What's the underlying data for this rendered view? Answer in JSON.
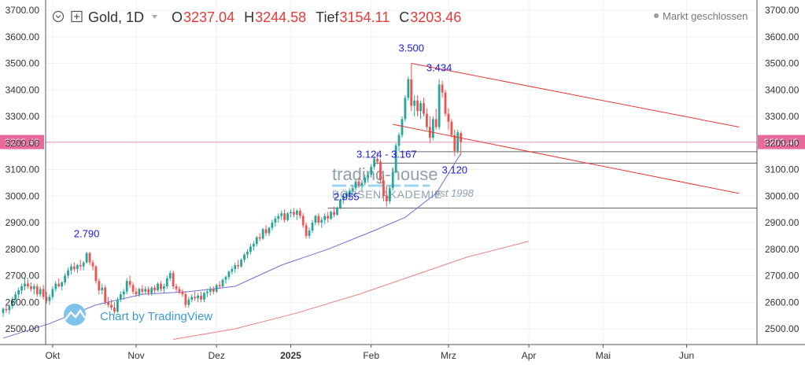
{
  "header": {
    "symbol": "Gold, 1D",
    "ohlc": [
      {
        "label": "O",
        "value": "3237.04"
      },
      {
        "label": "H",
        "value": "3244.58"
      },
      {
        "label": "Tief",
        "value": "3154.11"
      },
      {
        "label": "C",
        "value": "3203.46"
      }
    ],
    "status": "Markt geschlossen",
    "icons": [
      "chevron-down-icon",
      "expand-icon",
      "dropdown-caret-icon"
    ]
  },
  "watermark": {
    "line1": "trading-house",
    "line2": "BÖRSENAKADEMIE",
    "est": "est 1998"
  },
  "branding": {
    "text": "Chart by TradingView",
    "icon": "tradingview-cloud-icon"
  },
  "colors": {
    "up": "#26a69a",
    "down": "#ef5350",
    "ma_short": "#6f6fd8",
    "ma_long": "#f08080",
    "channel": "#e53935",
    "last_price": "#e8699b",
    "annotation": "#1a1adb",
    "ohlc_value": "#e53935"
  },
  "chart_data": {
    "type": "candlestick",
    "ylim": [
      2460,
      3740
    ],
    "yticks": [
      "3700.00",
      "3600.00",
      "3500.00",
      "3400.00",
      "3300.00",
      "3200.00",
      "3100.00",
      "3000.00",
      "2900.00",
      "2800.00",
      "2700.00",
      "2600.00",
      "2500.00"
    ],
    "ytick_values": [
      3700,
      3600,
      3500,
      3400,
      3300,
      3200,
      3100,
      3000,
      2900,
      2800,
      2700,
      2600,
      2500
    ],
    "xlim": [
      0,
      241
    ],
    "xticks": [
      {
        "label": "Okt",
        "x": 16,
        "bold": false
      },
      {
        "label": "Nov",
        "x": 43,
        "bold": false
      },
      {
        "label": "Dez",
        "x": 69,
        "bold": false
      },
      {
        "label": "2025",
        "x": 93,
        "bold": true
      },
      {
        "label": "Feb",
        "x": 119,
        "bold": false
      },
      {
        "label": "Mrz",
        "x": 144,
        "bold": false
      },
      {
        "label": "Apr",
        "x": 170,
        "bold": false
      },
      {
        "label": "Mai",
        "x": 194,
        "bold": false
      },
      {
        "label": "Jun",
        "x": 221,
        "bold": false
      }
    ],
    "last_price": {
      "value": 3203.46,
      "label": "3203.46"
    },
    "candles": [
      [
        0,
        2560,
        2580,
        2545,
        2575
      ],
      [
        1,
        2575,
        2590,
        2560,
        2570
      ],
      [
        2,
        2570,
        2590,
        2555,
        2585
      ],
      [
        3,
        2585,
        2620,
        2575,
        2610
      ],
      [
        4,
        2610,
        2640,
        2600,
        2630
      ],
      [
        5,
        2630,
        2655,
        2615,
        2645
      ],
      [
        6,
        2645,
        2670,
        2630,
        2660
      ],
      [
        7,
        2660,
        2690,
        2645,
        2670
      ],
      [
        8,
        2670,
        2685,
        2650,
        2660
      ],
      [
        9,
        2660,
        2675,
        2640,
        2650
      ],
      [
        10,
        2650,
        2670,
        2630,
        2660
      ],
      [
        11,
        2660,
        2670,
        2620,
        2630
      ],
      [
        12,
        2630,
        2660,
        2620,
        2650
      ],
      [
        13,
        2650,
        2665,
        2610,
        2620
      ],
      [
        14,
        2620,
        2640,
        2595,
        2605
      ],
      [
        15,
        2605,
        2630,
        2590,
        2620
      ],
      [
        16,
        2620,
        2660,
        2610,
        2650
      ],
      [
        17,
        2650,
        2680,
        2640,
        2670
      ],
      [
        18,
        2670,
        2690,
        2655,
        2660
      ],
      [
        19,
        2660,
        2680,
        2645,
        2675
      ],
      [
        20,
        2675,
        2710,
        2665,
        2700
      ],
      [
        21,
        2700,
        2730,
        2690,
        2720
      ],
      [
        22,
        2720,
        2745,
        2705,
        2735
      ],
      [
        23,
        2735,
        2750,
        2715,
        2725
      ],
      [
        24,
        2725,
        2745,
        2710,
        2740
      ],
      [
        25,
        2740,
        2760,
        2720,
        2735
      ],
      [
        26,
        2735,
        2755,
        2720,
        2750
      ],
      [
        27,
        2750,
        2790,
        2745,
        2785
      ],
      [
        28,
        2785,
        2790,
        2740,
        2750
      ],
      [
        29,
        2750,
        2760,
        2720,
        2735
      ],
      [
        30,
        2735,
        2740,
        2670,
        2680
      ],
      [
        31,
        2680,
        2690,
        2630,
        2645
      ],
      [
        32,
        2645,
        2670,
        2630,
        2655
      ],
      [
        33,
        2655,
        2665,
        2590,
        2600
      ],
      [
        34,
        2600,
        2620,
        2580,
        2590
      ],
      [
        35,
        2590,
        2610,
        2570,
        2580
      ],
      [
        36,
        2580,
        2600,
        2555,
        2565
      ],
      [
        37,
        2565,
        2620,
        2560,
        2610
      ],
      [
        38,
        2610,
        2640,
        2600,
        2630
      ],
      [
        39,
        2630,
        2650,
        2610,
        2640
      ],
      [
        40,
        2640,
        2690,
        2630,
        2680
      ],
      [
        41,
        2680,
        2700,
        2655,
        2665
      ],
      [
        42,
        2665,
        2675,
        2630,
        2640
      ],
      [
        43,
        2640,
        2655,
        2620,
        2630
      ],
      [
        44,
        2630,
        2655,
        2620,
        2650
      ],
      [
        45,
        2650,
        2665,
        2630,
        2640
      ],
      [
        46,
        2640,
        2660,
        2630,
        2650
      ],
      [
        47,
        2650,
        2660,
        2625,
        2635
      ],
      [
        48,
        2635,
        2660,
        2625,
        2655
      ],
      [
        49,
        2655,
        2665,
        2635,
        2645
      ],
      [
        50,
        2645,
        2675,
        2640,
        2670
      ],
      [
        51,
        2670,
        2680,
        2640,
        2650
      ],
      [
        52,
        2650,
        2670,
        2635,
        2660
      ],
      [
        53,
        2660,
        2700,
        2650,
        2690
      ],
      [
        54,
        2690,
        2720,
        2680,
        2710
      ],
      [
        55,
        2710,
        2720,
        2650,
        2660
      ],
      [
        56,
        2660,
        2670,
        2640,
        2650
      ],
      [
        57,
        2650,
        2660,
        2630,
        2640
      ],
      [
        58,
        2640,
        2650,
        2620,
        2630
      ],
      [
        59,
        2630,
        2640,
        2580,
        2590
      ],
      [
        60,
        2590,
        2620,
        2580,
        2610
      ],
      [
        61,
        2610,
        2630,
        2600,
        2620
      ],
      [
        62,
        2620,
        2640,
        2605,
        2615
      ],
      [
        63,
        2615,
        2635,
        2600,
        2625
      ],
      [
        64,
        2625,
        2640,
        2600,
        2610
      ],
      [
        65,
        2610,
        2640,
        2600,
        2635
      ],
      [
        66,
        2635,
        2650,
        2620,
        2640
      ],
      [
        67,
        2640,
        2660,
        2625,
        2650
      ],
      [
        68,
        2650,
        2660,
        2630,
        2640
      ],
      [
        69,
        2640,
        2670,
        2635,
        2665
      ],
      [
        70,
        2665,
        2680,
        2650,
        2660
      ],
      [
        71,
        2660,
        2690,
        2655,
        2685
      ],
      [
        72,
        2685,
        2700,
        2670,
        2695
      ],
      [
        73,
        2695,
        2720,
        2685,
        2715
      ],
      [
        74,
        2715,
        2735,
        2705,
        2725
      ],
      [
        75,
        2725,
        2750,
        2710,
        2740
      ],
      [
        76,
        2740,
        2760,
        2725,
        2735
      ],
      [
        77,
        2735,
        2765,
        2730,
        2760
      ],
      [
        78,
        2760,
        2785,
        2750,
        2780
      ],
      [
        79,
        2780,
        2800,
        2765,
        2790
      ],
      [
        80,
        2790,
        2820,
        2780,
        2810
      ],
      [
        81,
        2810,
        2830,
        2795,
        2820
      ],
      [
        82,
        2820,
        2850,
        2810,
        2845
      ],
      [
        83,
        2845,
        2860,
        2830,
        2840
      ],
      [
        84,
        2840,
        2880,
        2835,
        2875
      ],
      [
        85,
        2875,
        2890,
        2850,
        2860
      ],
      [
        86,
        2860,
        2885,
        2850,
        2880
      ],
      [
        87,
        2880,
        2910,
        2870,
        2900
      ],
      [
        88,
        2900,
        2925,
        2885,
        2915
      ],
      [
        89,
        2915,
        2935,
        2900,
        2925
      ],
      [
        90,
        2925,
        2945,
        2910,
        2935
      ],
      [
        91,
        2935,
        2950,
        2900,
        2910
      ],
      [
        92,
        2910,
        2940,
        2905,
        2935
      ],
      [
        93,
        2935,
        2950,
        2920,
        2940
      ],
      [
        94,
        2940,
        2955,
        2920,
        2930
      ],
      [
        95,
        2930,
        2950,
        2910,
        2945
      ],
      [
        96,
        2945,
        2955,
        2915,
        2925
      ],
      [
        97,
        2925,
        2935,
        2880,
        2890
      ],
      [
        98,
        2890,
        2900,
        2840,
        2850
      ],
      [
        99,
        2850,
        2880,
        2840,
        2870
      ],
      [
        100,
        2870,
        2910,
        2860,
        2900
      ],
      [
        101,
        2900,
        2930,
        2890,
        2925
      ],
      [
        102,
        2925,
        2935,
        2890,
        2900
      ],
      [
        103,
        2900,
        2920,
        2880,
        2910
      ],
      [
        104,
        2910,
        2935,
        2895,
        2925
      ],
      [
        105,
        2925,
        2940,
        2900,
        2915
      ],
      [
        106,
        2915,
        2945,
        2910,
        2940
      ],
      [
        107,
        2940,
        2960,
        2920,
        2930
      ],
      [
        108,
        2930,
        2960,
        2925,
        2955
      ],
      [
        109,
        2955,
        2990,
        2950,
        2985
      ],
      [
        110,
        2985,
        3010,
        2970,
        3000
      ],
      [
        111,
        3000,
        3020,
        2985,
        3010
      ],
      [
        112,
        3010,
        3030,
        2990,
        3020
      ],
      [
        113,
        3020,
        3040,
        3000,
        3030
      ],
      [
        114,
        3030,
        3060,
        3020,
        3055
      ],
      [
        115,
        3055,
        3070,
        3030,
        3040
      ],
      [
        116,
        3040,
        3060,
        3020,
        3050
      ],
      [
        117,
        3050,
        3080,
        3040,
        3070
      ],
      [
        118,
        3070,
        3090,
        3050,
        3080
      ],
      [
        119,
        3080,
        3120,
        3070,
        3110
      ],
      [
        120,
        3110,
        3150,
        3100,
        3140
      ],
      [
        121,
        3140,
        3167,
        3120,
        3130
      ],
      [
        122,
        3130,
        3140,
        3050,
        3060
      ],
      [
        123,
        3060,
        3080,
        2980,
        3000
      ],
      [
        124,
        3000,
        3040,
        2960,
        2980
      ],
      [
        125,
        2980,
        3040,
        2970,
        3030
      ],
      [
        126,
        3030,
        3100,
        3020,
        3090
      ],
      [
        127,
        3090,
        3200,
        3085,
        3190
      ],
      [
        128,
        3190,
        3240,
        3170,
        3230
      ],
      [
        129,
        3230,
        3300,
        3220,
        3290
      ],
      [
        130,
        3290,
        3380,
        3280,
        3370
      ],
      [
        131,
        3370,
        3450,
        3360,
        3440
      ],
      [
        132,
        3440,
        3500,
        3320,
        3340
      ],
      [
        133,
        3340,
        3380,
        3300,
        3360
      ],
      [
        134,
        3360,
        3380,
        3300,
        3320
      ],
      [
        135,
        3320,
        3360,
        3290,
        3350
      ],
      [
        136,
        3350,
        3370,
        3300,
        3310
      ],
      [
        137,
        3310,
        3330,
        3250,
        3260
      ],
      [
        138,
        3260,
        3300,
        3200,
        3220
      ],
      [
        139,
        3220,
        3300,
        3210,
        3290
      ],
      [
        140,
        3290,
        3330,
        3250,
        3260
      ],
      [
        141,
        3260,
        3440,
        3250,
        3420
      ],
      [
        142,
        3420,
        3434,
        3370,
        3390
      ],
      [
        143,
        3390,
        3400,
        3300,
        3310
      ],
      [
        144,
        3310,
        3330,
        3250,
        3280
      ],
      [
        145,
        3280,
        3290,
        3220,
        3230
      ],
      [
        146,
        3230,
        3250,
        3150,
        3170
      ],
      [
        147,
        3170,
        3250,
        3160,
        3240
      ],
      [
        148,
        3237,
        3245,
        3154,
        3203
      ]
    ],
    "ma_short": [
      [
        0,
        2465
      ],
      [
        15,
        2520
      ],
      [
        30,
        2590
      ],
      [
        45,
        2630
      ],
      [
        60,
        2640
      ],
      [
        75,
        2660
      ],
      [
        90,
        2740
      ],
      [
        105,
        2800
      ],
      [
        120,
        2870
      ],
      [
        130,
        2920
      ],
      [
        140,
        3010
      ],
      [
        148,
        3160
      ]
    ],
    "ma_long": [
      [
        55,
        2460
      ],
      [
        75,
        2500
      ],
      [
        95,
        2560
      ],
      [
        115,
        2630
      ],
      [
        130,
        2690
      ],
      [
        140,
        2730
      ],
      [
        150,
        2770
      ],
      [
        160,
        2800
      ],
      [
        170,
        2830
      ]
    ],
    "channel_upper": [
      [
        132,
        3500
      ],
      [
        238,
        3260
      ]
    ],
    "channel_lower": [
      [
        126,
        3270
      ],
      [
        238,
        3010
      ]
    ],
    "levels": [
      {
        "value": 2955,
        "x0": 105
      },
      {
        "value": 3124,
        "x0": 120
      },
      {
        "value": 3167,
        "x0": 128
      }
    ],
    "annotations": [
      {
        "text": "2.790",
        "x": 27,
        "y": 2845
      },
      {
        "text": "2.955",
        "x": 111,
        "y": 2985
      },
      {
        "text": "3.124 - 3.167",
        "x": 124,
        "y": 3145
      },
      {
        "text": "3.500",
        "x": 132,
        "y": 3545
      },
      {
        "text": "3.434",
        "x": 141,
        "y": 3470
      },
      {
        "text": "3.120",
        "x": 146,
        "y": 3085
      }
    ]
  }
}
